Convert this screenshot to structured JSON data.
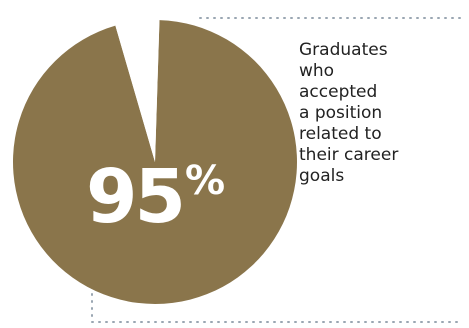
{
  "chart_data": {
    "type": "pie",
    "slices": [
      {
        "label": "",
        "value": 95
      },
      {
        "label": "",
        "value": 5
      }
    ],
    "highlight_value": "95",
    "highlight_unit": "%",
    "caption_lines": [
      "Graduates",
      "who",
      "accepted",
      "a position",
      "related to",
      "their career",
      "goals"
    ]
  },
  "colors": {
    "pie_fill": "#8a754b",
    "gap_fill": "#ffffff",
    "leader_dots": "#9aa6b2",
    "caption_text": "#222222",
    "percent_text": "#ffffff"
  }
}
